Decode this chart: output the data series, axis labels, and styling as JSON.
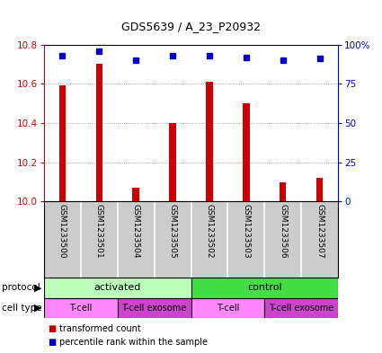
{
  "title": "GDS5639 / A_23_P20932",
  "samples": [
    "GSM1233500",
    "GSM1233501",
    "GSM1233504",
    "GSM1233505",
    "GSM1233502",
    "GSM1233503",
    "GSM1233506",
    "GSM1233507"
  ],
  "transformed_counts": [
    10.59,
    10.7,
    10.07,
    10.4,
    10.61,
    10.5,
    10.1,
    10.12
  ],
  "percentile_ranks": [
    93,
    96,
    90,
    93,
    93,
    92,
    90,
    91
  ],
  "ylim": [
    10.0,
    10.8
  ],
  "yticks_left": [
    10.0,
    10.2,
    10.4,
    10.6,
    10.8
  ],
  "yticks_right": [
    0,
    25,
    50,
    75,
    100
  ],
  "bar_color": "#cc0000",
  "dot_color": "#0000cc",
  "protocol_groups": [
    {
      "label": "activated",
      "start": 0,
      "end": 4,
      "color": "#bbffbb"
    },
    {
      "label": "control",
      "start": 4,
      "end": 8,
      "color": "#44dd44"
    }
  ],
  "cell_type_groups": [
    {
      "label": "T-cell",
      "start": 0,
      "end": 2,
      "color": "#ff88ff"
    },
    {
      "label": "T-cell exosome",
      "start": 2,
      "end": 4,
      "color": "#cc44cc"
    },
    {
      "label": "T-cell",
      "start": 4,
      "end": 6,
      "color": "#ff88ff"
    },
    {
      "label": "T-cell exosome",
      "start": 6,
      "end": 8,
      "color": "#cc44cc"
    }
  ],
  "left_axis_color": "#cc0000",
  "right_axis_color": "#0000cc",
  "grid_color": "#888888",
  "bg_color": "#ffffff",
  "sample_bg_color": "#cccccc"
}
